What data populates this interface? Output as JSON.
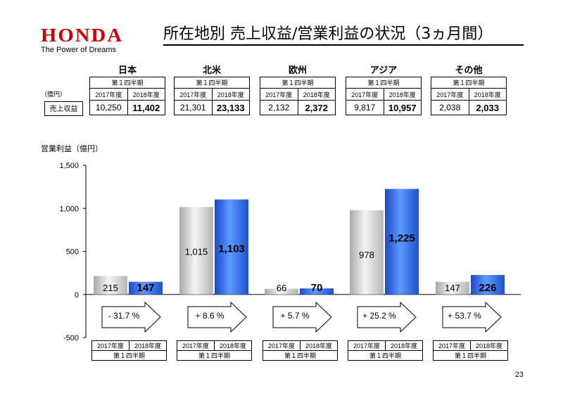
{
  "header": {
    "logo_text": "HONDA",
    "tagline": "The Power of Dreams",
    "title": "所在地別 売上収益/営業利益の状況（3ヵ月間）"
  },
  "revenue_table": {
    "unit_label": "（億円）",
    "row_label": "売上収益",
    "quarter_label": "第１四半期",
    "year_prev": "2017年度",
    "year_curr": "2018年度",
    "regions": [
      {
        "name": "日本",
        "prev": "10,250",
        "curr": "11,402"
      },
      {
        "name": "北米",
        "prev": "21,301",
        "curr": "23,133"
      },
      {
        "name": "欧州",
        "prev": "2,132",
        "curr": "2,372"
      },
      {
        "name": "アジア",
        "prev": "9,817",
        "curr": "10,957"
      },
      {
        "name": "その他",
        "prev": "2,038",
        "curr": "2,033"
      }
    ]
  },
  "chart_data": {
    "type": "bar",
    "ylabel": "営業利益（億円）",
    "ylim": [
      -500,
      1500
    ],
    "yticks": [
      -500,
      0,
      500,
      1000,
      1500
    ],
    "ytick_labels": [
      "-500",
      "0",
      "500",
      "1,000",
      "1,500"
    ],
    "categories": [
      "日本",
      "北米",
      "欧州",
      "アジア",
      "その他"
    ],
    "series": [
      {
        "name": "2017年度",
        "values": [
          215,
          1015,
          66,
          978,
          147
        ],
        "labels": [
          "215",
          "1,015",
          "66",
          "978",
          "147"
        ],
        "color": "#d4d4d4"
      },
      {
        "name": "2018年度",
        "values": [
          147,
          1103,
          70,
          1225,
          226
        ],
        "labels": [
          "147",
          "1,103",
          "70",
          "1,225",
          "226"
        ],
        "color": "#2f6ee6"
      }
    ],
    "changes": [
      "- 31.7 %",
      "+ 8.6 %",
      "+ 5.7 %",
      "+ 25.2 %",
      "+ 53.7 %"
    ],
    "bottom_year_prev": "2017年度",
    "bottom_year_curr": "2018年度",
    "bottom_quarter": "第１四半期"
  },
  "page_number": "23"
}
